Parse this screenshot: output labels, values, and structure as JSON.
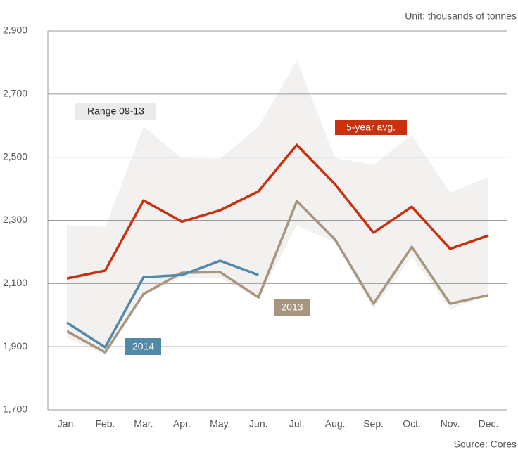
{
  "chart_data": {
    "type": "line",
    "subtitle": "Unit: thousands of tonnes",
    "source": "Source: Cores",
    "categories": [
      "Jan.",
      "Feb.",
      "Mar.",
      "Apr.",
      "May.",
      "Jun.",
      "Jul.",
      "Aug.",
      "Sep.",
      "Oct.",
      "Nov.",
      "Dec."
    ],
    "ylim": [
      1700,
      2900
    ],
    "yticks": [
      {
        "value": 1700,
        "label": "1,700"
      },
      {
        "value": 1900,
        "label": "1,900"
      },
      {
        "value": 2100,
        "label": "2,100"
      },
      {
        "value": 2300,
        "label": "2,300"
      },
      {
        "value": 2500,
        "label": "2,500"
      },
      {
        "value": 2700,
        "label": "2,700"
      },
      {
        "value": 2900,
        "label": "2,900"
      }
    ],
    "grid": true,
    "range": {
      "name": "Range 09-13",
      "color": "#f2f1f0",
      "high": [
        2285,
        2279,
        2597,
        2497,
        2495,
        2597,
        2806,
        2497,
        2477,
        2570,
        2388,
        2437
      ],
      "low": [
        1929,
        1873,
        2063,
        2118,
        2118,
        2051,
        2285,
        2230,
        2018,
        2185,
        2018,
        2063
      ]
    },
    "series": [
      {
        "name": "5-year avg.",
        "color": "#c8300e",
        "values": [
          2116,
          2141,
          2363,
          2296,
          2332,
          2392,
          2539,
          2414,
          2261,
          2343,
          2210,
          2252
        ]
      },
      {
        "name": "2013",
        "color": "#a89580",
        "values": [
          1949,
          1882,
          2067,
          2134,
          2136,
          2056,
          2361,
          2239,
          2036,
          2216,
          2036,
          2063
        ]
      },
      {
        "name": "2014",
        "color": "#5289a8",
        "values": [
          1976,
          1898,
          2120,
          2127,
          2172,
          2127,
          null,
          null,
          null,
          null,
          null,
          null
        ]
      }
    ]
  }
}
